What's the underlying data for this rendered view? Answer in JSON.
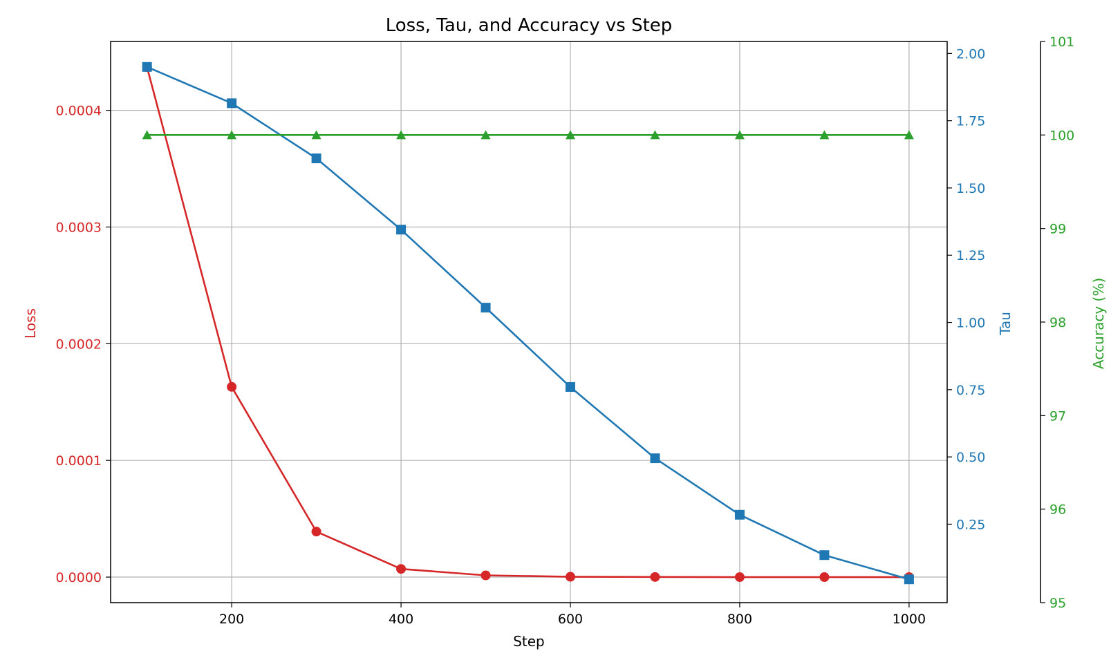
{
  "chart_data": {
    "type": "line",
    "title": "Loss, Tau, and Accuracy vs Step",
    "xlabel": "Step",
    "x": [
      100,
      200,
      300,
      400,
      500,
      600,
      700,
      800,
      900,
      1000
    ],
    "xlim": [
      57,
      1045
    ],
    "x_ticks": [
      200,
      400,
      600,
      800,
      1000
    ],
    "x_tick_labels": [
      "200",
      "400",
      "600",
      "800",
      "1000"
    ],
    "grid": true,
    "series": [
      {
        "name": "Loss",
        "axis": "left",
        "color": "#d62728",
        "marker": "circle",
        "values": [
          0.000437,
          0.000163,
          3.9e-05,
          7e-06,
          1.5e-06,
          3e-07,
          1e-07,
          0.0,
          0.0,
          0.0
        ]
      },
      {
        "name": "Tau",
        "axis": "right",
        "color": "#1f77b4",
        "marker": "square",
        "values": [
          1.95,
          1.815,
          1.61,
          1.345,
          1.055,
          0.76,
          0.495,
          0.285,
          0.135,
          0.045
        ]
      },
      {
        "name": "Accuracy (%)",
        "axis": "right2",
        "color": "#2ca02c",
        "marker": "triangle",
        "values": [
          100,
          100,
          100,
          100,
          100,
          100,
          100,
          100,
          100,
          100
        ]
      }
    ],
    "axes": {
      "left": {
        "label": "Loss",
        "color": "#d62728",
        "ylim": [
          -2.19e-05,
          0.000459
        ],
        "ticks": [
          0.0,
          0.0001,
          0.0002,
          0.0003,
          0.0004
        ],
        "tick_labels": [
          "0.0000",
          "0.0001",
          "0.0002",
          "0.0003",
          "0.0004"
        ]
      },
      "right": {
        "label": "Tau",
        "color": "#1f77b4",
        "ylim": [
          -0.0418,
          2.0446
        ],
        "ticks": [
          0.25,
          0.5,
          0.75,
          1.0,
          1.25,
          1.5,
          1.75,
          2.0
        ],
        "tick_labels": [
          "0.25",
          "0.50",
          "0.75",
          "1.00",
          "1.25",
          "1.50",
          "1.75",
          "2.00"
        ]
      },
      "right2": {
        "label": "Accuracy (%)",
        "color": "#2ca02c",
        "ylim": [
          95,
          101
        ],
        "ticks": [
          95,
          96,
          97,
          98,
          99,
          100,
          101
        ],
        "tick_labels": [
          "95",
          "96",
          "97",
          "98",
          "99",
          "100",
          "101"
        ]
      }
    }
  }
}
